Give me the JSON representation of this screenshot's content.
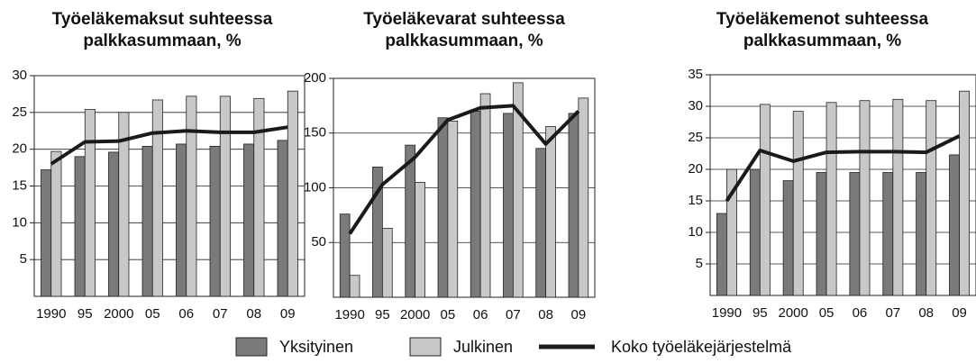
{
  "chart_data": [
    {
      "type": "bar",
      "title": "Työeläkemaksut suhteessa palkkasummaan, %",
      "categories": [
        "1990",
        "95",
        "2000",
        "05",
        "06",
        "07",
        "08",
        "09"
      ],
      "series": [
        {
          "name": "Yksityinen",
          "color": "#7a7a7a",
          "values": [
            17.2,
            19,
            19.6,
            20.4,
            20.7,
            20.4,
            20.7,
            21.2
          ]
        },
        {
          "name": "Julkinen",
          "color": "#c8c8c8",
          "values": [
            19.7,
            25.4,
            25,
            26.7,
            27.2,
            27.2,
            26.9,
            27.9
          ]
        },
        {
          "name": "Koko työeläkejärjestelmä",
          "color": "#1a1a1a",
          "type": "line",
          "values": [
            18,
            21,
            21.1,
            22.2,
            22.5,
            22.3,
            22.3,
            23
          ]
        }
      ],
      "ylim": [
        0,
        30
      ],
      "yticks": [
        5,
        10,
        15,
        20,
        25,
        30
      ],
      "grid": true
    },
    {
      "type": "bar",
      "title": "Työeläkevarat suhteessa palkkasummaan, %",
      "categories": [
        "1990",
        "95",
        "2000",
        "05",
        "06",
        "07",
        "08",
        "09"
      ],
      "series": [
        {
          "name": "Yksityinen",
          "color": "#7a7a7a",
          "values": [
            76,
            119,
            139,
            164,
            170,
            168,
            136,
            168
          ]
        },
        {
          "name": "Julkinen",
          "color": "#c8c8c8",
          "values": [
            20,
            63,
            105,
            161,
            186,
            196,
            156,
            182
          ]
        },
        {
          "name": "Koko työeläkejärjestelmä",
          "color": "#1a1a1a",
          "type": "line",
          "values": [
            58,
            103,
            128,
            162,
            173,
            175,
            140,
            170
          ]
        }
      ],
      "ylim": [
        0,
        200
      ],
      "yticks": [
        50,
        100,
        150,
        200
      ],
      "grid": true
    },
    {
      "type": "bar",
      "title": "Työeläkemenot suhteessa palkkasummaan, %",
      "categories": [
        "1990",
        "95",
        "2000",
        "05",
        "06",
        "07",
        "08",
        "09"
      ],
      "series": [
        {
          "name": "Yksityinen",
          "color": "#7a7a7a",
          "values": [
            13,
            20,
            18.2,
            19.5,
            19.5,
            19.5,
            19.5,
            22.3
          ]
        },
        {
          "name": "Julkinen",
          "color": "#c8c8c8",
          "values": [
            20,
            30.3,
            29.2,
            30.6,
            30.9,
            31.1,
            30.9,
            32.4
          ]
        },
        {
          "name": "Koko työeläkejärjestelmä",
          "color": "#1a1a1a",
          "type": "line",
          "values": [
            15,
            23,
            21.3,
            22.7,
            22.8,
            22.8,
            22.7,
            25.3
          ]
        }
      ],
      "ylim": [
        0,
        35
      ],
      "yticks": [
        5,
        10,
        15,
        20,
        25,
        30,
        35
      ],
      "grid": true
    }
  ]
}
